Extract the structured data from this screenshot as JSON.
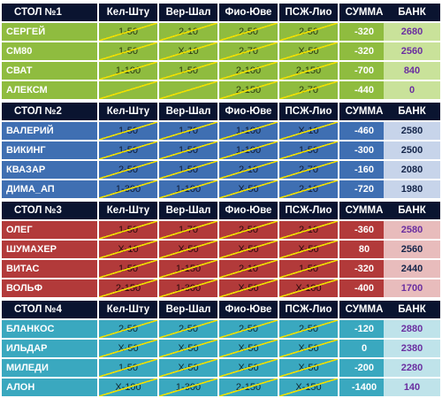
{
  "headers": [
    "Кел-Шту",
    "Вер-Шал",
    "Фио-Юве",
    "ПСЖ-Лио",
    "СУММА"
  ],
  "bank_label": "БАНК",
  "tables": [
    {
      "title": "СТОЛ №1",
      "rows": [
        {
          "name": "СЕРГЕЙ",
          "bets": [
            "1-50",
            "2-10",
            "2-50",
            "2-50"
          ],
          "sum": "-320",
          "bank": "2680"
        },
        {
          "name": "CM80",
          "bets": [
            "1-50",
            "X-10",
            "2-70",
            "X-50"
          ],
          "sum": "-320",
          "bank": "2560"
        },
        {
          "name": "СВАТ",
          "bets": [
            "1-100",
            "1-50",
            "2-100",
            "2-150"
          ],
          "sum": "-700",
          "bank": "840"
        },
        {
          "name": "АЛЕКСМ",
          "bets": [
            "",
            "",
            "2-150",
            "2-70"
          ],
          "sum": "-440",
          "bank": "0"
        }
      ]
    },
    {
      "title": "СТОЛ №2",
      "rows": [
        {
          "name": "ВАЛЕРИЙ",
          "bets": [
            "1-50",
            "1-70",
            "1-100",
            "X-10"
          ],
          "sum": "-460",
          "bank": "2580"
        },
        {
          "name": "ВИКИНГ",
          "bets": [
            "1-50",
            "1-50",
            "1-100",
            "1-50"
          ],
          "sum": "-300",
          "bank": "2500"
        },
        {
          "name": "КВАЗАР",
          "bets": [
            "2-50",
            "1-50",
            "2-10",
            "2-70"
          ],
          "sum": "-160",
          "bank": "2080"
        },
        {
          "name": "ДИМА_АП",
          "bets": [
            "1-300",
            "1-100",
            "X-50",
            "2-10"
          ],
          "sum": "-720",
          "bank": "1980"
        }
      ]
    },
    {
      "title": "СТОЛ №3",
      "rows": [
        {
          "name": "ОЛЕГ",
          "bets": [
            "1-50",
            "1-70",
            "2-50",
            "2-10"
          ],
          "sum": "-360",
          "bank": "2580"
        },
        {
          "name": "ШУМАХЕР",
          "bets": [
            "X-10",
            "X-50",
            "X-50",
            "X-50"
          ],
          "sum": "80",
          "bank": "2560"
        },
        {
          "name": "ВИТАС",
          "bets": [
            "1-50",
            "1-150",
            "2-10",
            "1-50"
          ],
          "sum": "-320",
          "bank": "2440"
        },
        {
          "name": "ВОЛЬФ",
          "bets": [
            "2-150",
            "1-300",
            "X-50",
            "X-100"
          ],
          "sum": "-400",
          "bank": "1700"
        }
      ]
    },
    {
      "title": "СТОЛ №4",
      "rows": [
        {
          "name": "БЛАНКОС",
          "bets": [
            "2-50",
            "2-50",
            "2-50",
            "2-50"
          ],
          "sum": "-120",
          "bank": "2880"
        },
        {
          "name": "ИЛЬДАР",
          "bets": [
            "X-50",
            "X-50",
            "X-50",
            "X-50"
          ],
          "sum": "0",
          "bank": "2380"
        },
        {
          "name": "МИЛЕДИ",
          "bets": [
            "1-50",
            "X-50",
            "X-50",
            "X-50"
          ],
          "sum": "-200",
          "bank": "2280"
        },
        {
          "name": "АЛОН",
          "bets": [
            "X-100",
            "1-300",
            "2-150",
            "X-150"
          ],
          "sum": "-1400",
          "bank": "140"
        }
      ]
    }
  ],
  "colors": {
    "header_bg": "#0a1430",
    "table1": "#8fbc3f",
    "table2": "#3f6fb2",
    "table3": "#b23a3a",
    "table4": "#3aa8bf",
    "strike_line": "#f0e000"
  }
}
